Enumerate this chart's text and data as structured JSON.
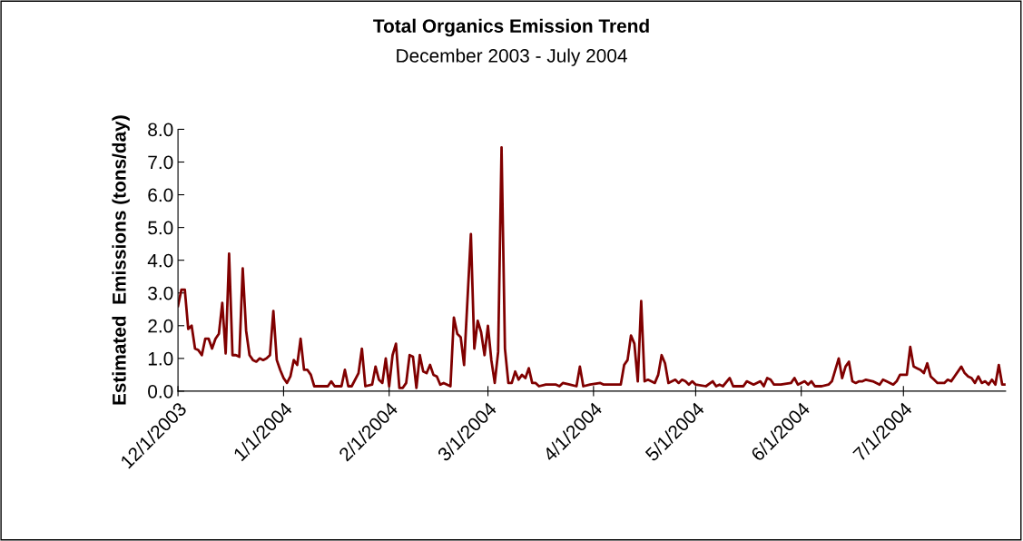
{
  "chart_data": {
    "type": "line",
    "title": "Total Organics Emission Trend",
    "subtitle": "December 2003 - July 2004",
    "ylabel": "Estimated  Emissions (tons/day)",
    "x": [
      "2003-12-01",
      "2003-12-02",
      "2003-12-03",
      "2003-12-04",
      "2003-12-05",
      "2003-12-06",
      "2003-12-07",
      "2003-12-08",
      "2003-12-09",
      "2003-12-10",
      "2003-12-11",
      "2003-12-12",
      "2003-12-13",
      "2003-12-14",
      "2003-12-15",
      "2003-12-16",
      "2003-12-17",
      "2003-12-18",
      "2003-12-19",
      "2003-12-20",
      "2003-12-21",
      "2003-12-22",
      "2003-12-23",
      "2003-12-24",
      "2003-12-25",
      "2003-12-26",
      "2003-12-27",
      "2003-12-28",
      "2003-12-29",
      "2003-12-30",
      "2003-12-31",
      "2004-01-01",
      "2004-01-02",
      "2004-01-03",
      "2004-01-04",
      "2004-01-05",
      "2004-01-06",
      "2004-01-07",
      "2004-01-08",
      "2004-01-09",
      "2004-01-10",
      "2004-01-14",
      "2004-01-15",
      "2004-01-16",
      "2004-01-18",
      "2004-01-19",
      "2004-01-20",
      "2004-01-21",
      "2004-01-23",
      "2004-01-24",
      "2004-01-25",
      "2004-01-27",
      "2004-01-28",
      "2004-01-29",
      "2004-01-30",
      "2004-01-31",
      "2004-02-01",
      "2004-02-02",
      "2004-02-03",
      "2004-02-04",
      "2004-02-05",
      "2004-02-06",
      "2004-02-07",
      "2004-02-08",
      "2004-02-09",
      "2004-02-10",
      "2004-02-11",
      "2004-02-12",
      "2004-02-13",
      "2004-02-14",
      "2004-02-15",
      "2004-02-16",
      "2004-02-17",
      "2004-02-19",
      "2004-02-20",
      "2004-02-21",
      "2004-02-22",
      "2004-02-23",
      "2004-02-25",
      "2004-02-26",
      "2004-02-27",
      "2004-02-28",
      "2004-02-29",
      "2004-03-01",
      "2004-03-02",
      "2004-03-03",
      "2004-03-04",
      "2004-03-05",
      "2004-03-06",
      "2004-03-07",
      "2004-03-08",
      "2004-03-09",
      "2004-03-10",
      "2004-03-11",
      "2004-03-12",
      "2004-03-13",
      "2004-03-14",
      "2004-03-15",
      "2004-03-16",
      "2004-03-18",
      "2004-03-21",
      "2004-03-22",
      "2004-03-23",
      "2004-03-25",
      "2004-03-27",
      "2004-03-28",
      "2004-03-29",
      "2004-03-31",
      "2004-04-03",
      "2004-04-04",
      "2004-04-07",
      "2004-04-09",
      "2004-04-10",
      "2004-04-11",
      "2004-04-12",
      "2004-04-13",
      "2004-04-14",
      "2004-04-15",
      "2004-04-16",
      "2004-04-17",
      "2004-04-19",
      "2004-04-20",
      "2004-04-21",
      "2004-04-22",
      "2004-04-23",
      "2004-04-25",
      "2004-04-26",
      "2004-04-27",
      "2004-04-28",
      "2004-04-29",
      "2004-04-30",
      "2004-05-01",
      "2004-05-04",
      "2004-05-06",
      "2004-05-07",
      "2004-05-08",
      "2004-05-09",
      "2004-05-11",
      "2004-05-12",
      "2004-05-15",
      "2004-05-16",
      "2004-05-18",
      "2004-05-20",
      "2004-05-21",
      "2004-05-22",
      "2004-05-23",
      "2004-05-24",
      "2004-05-26",
      "2004-05-29",
      "2004-05-30",
      "2004-05-31",
      "2004-06-02",
      "2004-06-03",
      "2004-06-04",
      "2004-06-05",
      "2004-06-07",
      "2004-06-09",
      "2004-06-10",
      "2004-06-12",
      "2004-06-13",
      "2004-06-14",
      "2004-06-15",
      "2004-06-16",
      "2004-06-17",
      "2004-06-18",
      "2004-06-19",
      "2004-06-20",
      "2004-06-22",
      "2004-06-24",
      "2004-06-25",
      "2004-06-26",
      "2004-06-28",
      "2004-06-29",
      "2004-06-30",
      "2004-07-02",
      "2004-07-03",
      "2004-07-04",
      "2004-07-05",
      "2004-07-06",
      "2004-07-07",
      "2004-07-08",
      "2004-07-09",
      "2004-07-10",
      "2004-07-11",
      "2004-07-13",
      "2004-07-14",
      "2004-07-15",
      "2004-07-16",
      "2004-07-18",
      "2004-07-19",
      "2004-07-20",
      "2004-07-21",
      "2004-07-22",
      "2004-07-23",
      "2004-07-24",
      "2004-07-25",
      "2004-07-26",
      "2004-07-27",
      "2004-07-28",
      "2004-07-29",
      "2004-07-30",
      "2004-07-31"
    ],
    "series": [
      {
        "color": "#800000",
        "values": [
          2.6,
          3.1,
          3.1,
          1.9,
          2.0,
          1.3,
          1.25,
          1.1,
          1.6,
          1.6,
          1.3,
          1.6,
          1.75,
          2.7,
          1.15,
          4.2,
          1.1,
          1.1,
          1.05,
          3.75,
          1.85,
          1.1,
          0.95,
          0.9,
          1.0,
          0.95,
          1.0,
          1.1,
          2.45,
          0.95,
          0.65,
          0.4,
          0.25,
          0.45,
          0.95,
          0.8,
          1.6,
          0.65,
          0.65,
          0.5,
          0.15,
          0.15,
          0.3,
          0.15,
          0.15,
          0.65,
          0.15,
          0.15,
          0.55,
          1.3,
          0.15,
          0.2,
          0.75,
          0.35,
          0.25,
          1.0,
          0.15,
          1.1,
          1.45,
          0.1,
          0.1,
          0.25,
          1.1,
          1.05,
          0.1,
          1.1,
          0.6,
          0.55,
          0.8,
          0.5,
          0.45,
          0.2,
          0.25,
          0.15,
          2.25,
          1.75,
          1.65,
          0.8,
          4.8,
          1.3,
          2.15,
          1.8,
          1.1,
          2.0,
          0.95,
          0.25,
          1.2,
          7.45,
          1.3,
          0.25,
          0.25,
          0.6,
          0.35,
          0.5,
          0.4,
          0.7,
          0.25,
          0.25,
          0.15,
          0.2,
          0.2,
          0.15,
          0.25,
          0.2,
          0.15,
          0.75,
          0.15,
          0.2,
          0.25,
          0.2,
          0.2,
          0.2,
          0.8,
          0.95,
          1.7,
          1.45,
          0.3,
          2.75,
          0.3,
          0.35,
          0.25,
          0.5,
          1.1,
          0.85,
          0.25,
          0.35,
          0.25,
          0.35,
          0.3,
          0.2,
          0.3,
          0.2,
          0.15,
          0.3,
          0.15,
          0.2,
          0.15,
          0.4,
          0.15,
          0.15,
          0.3,
          0.2,
          0.3,
          0.15,
          0.4,
          0.35,
          0.2,
          0.2,
          0.25,
          0.4,
          0.2,
          0.3,
          0.2,
          0.3,
          0.15,
          0.15,
          0.2,
          0.3,
          1.0,
          0.4,
          0.75,
          0.9,
          0.3,
          0.25,
          0.3,
          0.3,
          0.35,
          0.3,
          0.2,
          0.35,
          0.3,
          0.2,
          0.3,
          0.5,
          0.5,
          1.35,
          0.75,
          0.7,
          0.65,
          0.55,
          0.85,
          0.45,
          0.35,
          0.25,
          0.25,
          0.35,
          0.3,
          0.45,
          0.75,
          0.55,
          0.45,
          0.4,
          0.25,
          0.45,
          0.25,
          0.3,
          0.2,
          0.35,
          0.2,
          0.8,
          0.2,
          0.2
        ]
      }
    ],
    "xlim": [
      "2003-12-01",
      "2004-07-31"
    ],
    "xticks": [
      {
        "value": "2003-12-01",
        "label": "12/1/2003"
      },
      {
        "value": "2004-01-01",
        "label": "1/1/2004"
      },
      {
        "value": "2004-02-01",
        "label": "2/1/2004"
      },
      {
        "value": "2004-03-01",
        "label": "3/1/2004"
      },
      {
        "value": "2004-04-01",
        "label": "4/1/2004"
      },
      {
        "value": "2004-05-01",
        "label": "5/1/2004"
      },
      {
        "value": "2004-06-01",
        "label": "6/1/2004"
      },
      {
        "value": "2004-07-01",
        "label": "7/1/2004"
      }
    ],
    "ylim": [
      0,
      8
    ],
    "yticks": [
      {
        "value": 0,
        "label": "0.0"
      },
      {
        "value": 1,
        "label": "1.0"
      },
      {
        "value": 2,
        "label": "2.0"
      },
      {
        "value": 3,
        "label": "3.0"
      },
      {
        "value": 4,
        "label": "4.0"
      },
      {
        "value": 5,
        "label": "5.0"
      },
      {
        "value": 6,
        "label": "6.0"
      },
      {
        "value": 7,
        "label": "7.0"
      },
      {
        "value": 8,
        "label": "8.0"
      }
    ],
    "grid": false,
    "marker": "none",
    "line_style": "solid"
  }
}
